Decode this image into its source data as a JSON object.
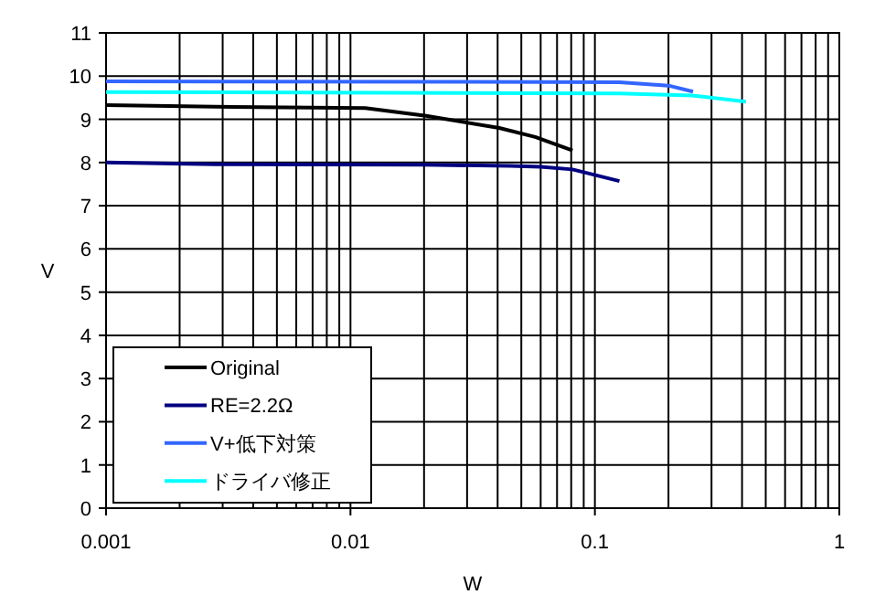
{
  "chart_data": {
    "type": "line",
    "xlabel": "W",
    "ylabel": "V",
    "log": "x",
    "grid": true,
    "legend": "bottom left",
    "xlim": [
      0.001,
      1
    ],
    "xticks": [
      {
        "value": 0.001,
        "label": "0.001"
      },
      {
        "value": 0.01,
        "label": "0.01"
      },
      {
        "value": 0.1,
        "label": "0.1"
      },
      1
    ],
    "ylim": [
      0,
      11
    ],
    "yticks": [
      0,
      1,
      2,
      3,
      4,
      5,
      6,
      7,
      8,
      9,
      10,
      11
    ],
    "series": [
      {
        "name": "Original",
        "color": "#000000",
        "x": [
          0.001,
          0.0028,
          0.0115,
          0.0204,
          0.0406,
          0.057,
          0.081
        ],
        "values": [
          9.33,
          9.29,
          9.26,
          9.08,
          8.8,
          8.59,
          8.28
        ]
      },
      {
        "name": "RE=2.2Ω",
        "color": "#000080",
        "x": [
          0.001,
          0.0028,
          0.02,
          0.045,
          0.06,
          0.081,
          0.126
        ],
        "values": [
          8.0,
          7.96,
          7.95,
          7.92,
          7.9,
          7.84,
          7.57
        ]
      },
      {
        "name": "V+低下対策",
        "color": "#3366ff",
        "x": [
          0.001,
          0.126,
          0.2,
          0.252
        ],
        "values": [
          9.88,
          9.86,
          9.78,
          9.64
        ]
      },
      {
        "name": "ドライバ修正",
        "color": "#00ffff",
        "x": [
          0.001,
          0.126,
          0.25,
          0.415
        ],
        "values": [
          9.63,
          9.6,
          9.55,
          9.41
        ]
      }
    ]
  }
}
